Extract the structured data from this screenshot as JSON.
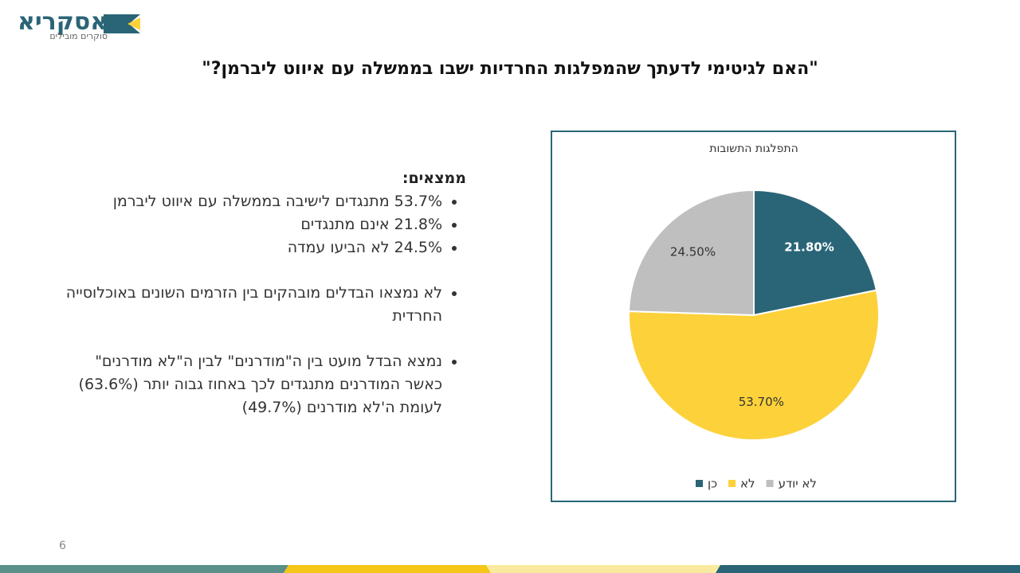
{
  "logo": {
    "name": "אסקריא",
    "tagline": "סוקרים מובילים"
  },
  "slide_title": "\"האם לגיטימי לדעתך שהמפלגות החרדיות ישבו בממשלה עם איווט ליברמן?\"",
  "findings": {
    "heading": "ממצאים:",
    "groups": [
      [
        "53.7% מתנגדים לישיבה בממשלה עם איווט ליברמן",
        "21.8% אינם מתנגדים",
        "24.5% לא הביעו עמדה"
      ],
      [
        "לא נמצאו הבדלים מובהקים בין הזרמים השונים באוכלוסייה החרדית"
      ],
      [
        "נמצא הבדל מועט בין ה\"מודרנים\" לבין ה\"לא מודרנים\" כאשר המודרנים מתנגדים לכך באחוז גבוה יותר (63.6%) לעומת ה'לא מודרנים (49.7%)"
      ]
    ]
  },
  "page_number": "6",
  "chart_data": {
    "type": "pie",
    "title": "התפלגות התשובות",
    "categories": [
      "כן",
      "לא",
      "לא יודע"
    ],
    "values": [
      21.8,
      53.7,
      24.5
    ],
    "value_labels": [
      "21.80%",
      "53.70%",
      "24.50%"
    ],
    "colors": [
      "#2a6577",
      "#fdd13a",
      "#bfbfbf"
    ],
    "legend": "bottom"
  }
}
